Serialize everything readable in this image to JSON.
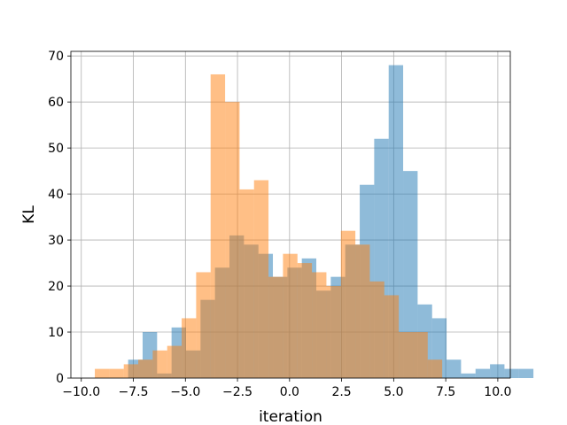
{
  "chart_data": {
    "type": "bar",
    "subtype": "overlapping-histogram",
    "xlabel": "iteration",
    "ylabel": "KL",
    "xlim": [
      -10.5,
      10.6
    ],
    "ylim": [
      0,
      71
    ],
    "xticks": [
      -10.0,
      -7.5,
      -5.0,
      -2.5,
      0.0,
      2.5,
      5.0,
      7.5,
      10.0
    ],
    "xtick_labels": [
      "−10.0",
      "−7.5",
      "−5.0",
      "−2.5",
      "0.0",
      "2.5",
      "5.0",
      "7.5",
      "10.0"
    ],
    "yticks": [
      0,
      10,
      20,
      30,
      40,
      50,
      60,
      70
    ],
    "ytick_labels": [
      "0",
      "10",
      "20",
      "30",
      "40",
      "50",
      "60",
      "70"
    ],
    "grid": true,
    "series": [
      {
        "color": "#1f77b4",
        "opacity": 0.5,
        "bin_start": -7.75,
        "bin_width": 0.695,
        "counts": [
          4,
          10,
          1,
          11,
          6,
          17,
          24,
          31,
          29,
          27,
          22,
          24,
          26,
          19,
          22,
          29,
          42,
          52,
          68,
          45,
          16,
          13,
          4,
          1,
          2,
          3,
          2,
          2
        ]
      },
      {
        "color": "#ff7f0e",
        "opacity": 0.5,
        "bin_start": -9.35,
        "bin_width": 0.695,
        "counts": [
          2,
          2,
          3,
          4,
          6,
          7,
          13,
          23,
          66,
          60,
          41,
          43,
          22,
          27,
          25,
          23,
          20,
          32,
          29,
          21,
          18,
          10,
          10,
          4
        ]
      }
    ]
  }
}
